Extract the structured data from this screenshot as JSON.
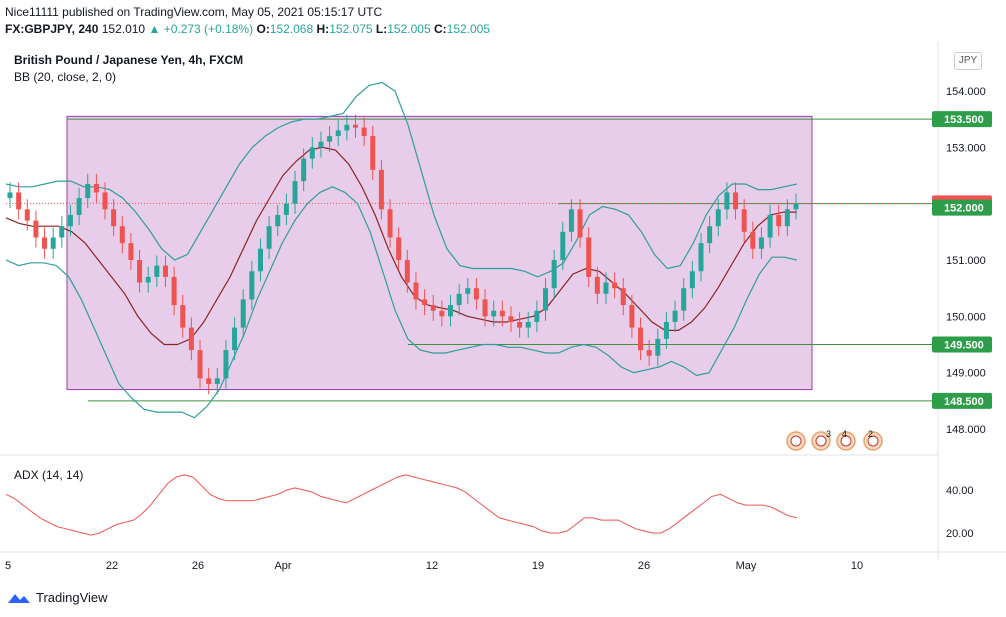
{
  "header": {
    "line1": "Nice11111 published on TradingView.com, May 05, 2021 05:15:17 UTC",
    "symbol": "FX:GBPJPY, 240",
    "last": "152.010",
    "change": "+0.273 (+0.18%)",
    "o_label": "O:",
    "o": "152.068",
    "h_label": "H:",
    "h": "152.075",
    "l_label": "L:",
    "l": "152.005",
    "c_label": "C:",
    "c": "152.005"
  },
  "legend": {
    "title": "British Pound / Japanese Yen, 4h, FXCM",
    "bb": "BB (20, close, 2, 0)",
    "adx": "ADX (14, 14)"
  },
  "unit_button": "JPY",
  "footer": {
    "brand": "TradingView"
  },
  "colors": {
    "up": "#26a69a",
    "down": "#ef5350",
    "band": "#2e9e9a",
    "basis": "#8d2424",
    "box_fill": "#e8cdea",
    "box_stroke": "#9b3bb0",
    "hline": "#3d9141",
    "adx": "#ef5350",
    "price_tag_current": "#ef5350",
    "price_tag_level": "#2e9d4a"
  },
  "chart_data": {
    "type": "candlestick",
    "ylim": [
      147.6,
      154.6
    ],
    "y_ticks": [
      154.0,
      153.0,
      151.0,
      150.0,
      149.0,
      148.0
    ],
    "y_tick_labels": [
      "154.000",
      "153.000",
      "151.000",
      "150.000",
      "149.000",
      "148.000"
    ],
    "x_tick_labels": [
      "5",
      "22",
      "26",
      "Apr",
      "12",
      "19",
      "26",
      "May",
      "10"
    ],
    "levels": [
      {
        "value": 153.5,
        "label": "153.500"
      },
      {
        "value": 152.0,
        "label": "152.000"
      },
      {
        "value": 149.5,
        "label": "149.500"
      },
      {
        "value": 148.5,
        "label": "148.500"
      }
    ],
    "current_price": {
      "value": 152.005,
      "label": "152.005"
    },
    "range_box": {
      "low": 148.7,
      "high": 153.55
    },
    "close_series": [
      152.2,
      151.9,
      151.7,
      151.4,
      151.2,
      151.4,
      151.6,
      151.8,
      152.1,
      152.35,
      152.2,
      151.9,
      151.6,
      151.3,
      151.0,
      150.6,
      150.7,
      150.9,
      150.7,
      150.2,
      149.8,
      149.4,
      148.9,
      148.8,
      148.9,
      149.4,
      149.8,
      150.3,
      150.8,
      151.2,
      151.6,
      151.8,
      152.0,
      152.4,
      152.8,
      153.0,
      153.1,
      153.2,
      153.3,
      153.4,
      153.35,
      153.2,
      152.6,
      151.9,
      151.4,
      151.0,
      150.6,
      150.3,
      150.2,
      150.1,
      150.0,
      150.2,
      150.4,
      150.5,
      150.3,
      150.0,
      150.1,
      150.0,
      149.9,
      149.8,
      149.9,
      150.1,
      150.5,
      151.0,
      151.5,
      151.9,
      151.4,
      150.7,
      150.4,
      150.6,
      150.5,
      150.2,
      149.8,
      149.4,
      149.3,
      149.6,
      149.9,
      150.1,
      150.5,
      150.8,
      151.3,
      151.6,
      151.9,
      152.2,
      151.9,
      151.5,
      151.2,
      151.4,
      151.8,
      151.6,
      151.9,
      152.0
    ],
    "bb_upper": [
      152.35,
      152.3,
      152.3,
      152.35,
      152.4,
      152.4,
      152.3,
      152.3,
      152.25,
      152.1,
      151.85,
      151.55,
      151.2,
      151.0,
      151.1,
      151.5,
      151.9,
      152.3,
      152.7,
      153.0,
      153.2,
      153.35,
      153.45,
      153.5,
      153.5,
      153.55,
      153.6,
      153.9,
      154.1,
      154.15,
      154.0,
      153.4,
      152.6,
      151.8,
      151.2,
      150.9,
      150.85,
      150.85,
      150.85,
      150.85,
      150.8,
      150.7,
      150.8,
      150.95,
      151.35,
      151.8,
      151.95,
      151.9,
      151.8,
      151.5,
      151.1,
      150.85,
      150.9,
      151.3,
      151.8,
      152.15,
      152.35,
      152.35,
      152.25,
      152.25,
      152.3,
      152.35
    ],
    "bb_lower": [
      151.0,
      150.9,
      150.95,
      150.95,
      150.9,
      150.7,
      150.3,
      149.8,
      149.3,
      148.8,
      148.55,
      148.35,
      148.3,
      148.3,
      148.3,
      148.2,
      148.4,
      148.7,
      149.2,
      149.7,
      150.3,
      150.8,
      151.3,
      151.7,
      152.0,
      152.2,
      152.3,
      152.2,
      152.0,
      151.5,
      150.8,
      150.1,
      149.6,
      149.4,
      149.35,
      149.35,
      149.4,
      149.45,
      149.5,
      149.5,
      149.45,
      149.45,
      149.4,
      149.35,
      149.35,
      149.45,
      149.5,
      149.45,
      149.3,
      149.1,
      149.0,
      149.05,
      149.1,
      149.2,
      149.1,
      148.95,
      149.0,
      149.4,
      149.8,
      150.3,
      150.75,
      151.05,
      151.05,
      151.0
    ],
    "bb_basis": [
      151.75,
      151.65,
      151.6,
      151.6,
      151.6,
      151.5,
      151.3,
      151.0,
      150.7,
      150.4,
      150.0,
      149.7,
      149.5,
      149.5,
      149.6,
      149.9,
      150.3,
      150.7,
      151.2,
      151.7,
      152.1,
      152.5,
      152.75,
      152.95,
      153.0,
      152.95,
      152.7,
      152.3,
      151.8,
      151.2,
      150.7,
      150.35,
      150.2,
      150.15,
      150.1,
      150.0,
      149.95,
      149.9,
      149.9,
      149.95,
      150.0,
      150.15,
      150.45,
      150.75,
      150.85,
      150.8,
      150.6,
      150.4,
      150.15,
      149.9,
      149.75,
      149.75,
      149.9,
      150.15,
      150.5,
      150.9,
      151.3,
      151.6,
      151.8,
      151.85,
      151.85
    ],
    "adx": {
      "ylim": [
        12,
        50
      ],
      "y_ticks": [
        40.0,
        20.0
      ],
      "y_tick_labels": [
        "40.00",
        "20.00"
      ],
      "values": [
        38,
        36,
        33,
        30,
        27,
        25,
        23,
        22,
        21,
        20,
        19,
        20,
        22,
        24,
        25,
        26,
        29,
        33,
        38,
        43,
        46,
        47,
        46,
        42,
        38,
        36,
        35,
        35,
        35,
        35,
        36,
        37,
        38,
        40,
        41,
        40,
        39,
        37,
        36,
        35,
        34,
        36,
        38,
        40,
        42,
        44,
        46,
        47,
        46,
        45,
        44,
        43,
        42,
        41,
        39,
        36,
        33,
        30,
        27,
        26,
        25,
        24,
        23,
        21,
        20,
        20,
        21,
        24,
        27,
        27,
        26,
        26,
        26,
        24,
        22,
        21,
        20,
        20,
        22,
        25,
        28,
        31,
        34,
        37,
        38,
        36,
        34,
        33,
        33,
        33,
        32,
        30,
        28,
        27
      ]
    },
    "event_markers": [
      "3",
      "4",
      "2"
    ]
  }
}
